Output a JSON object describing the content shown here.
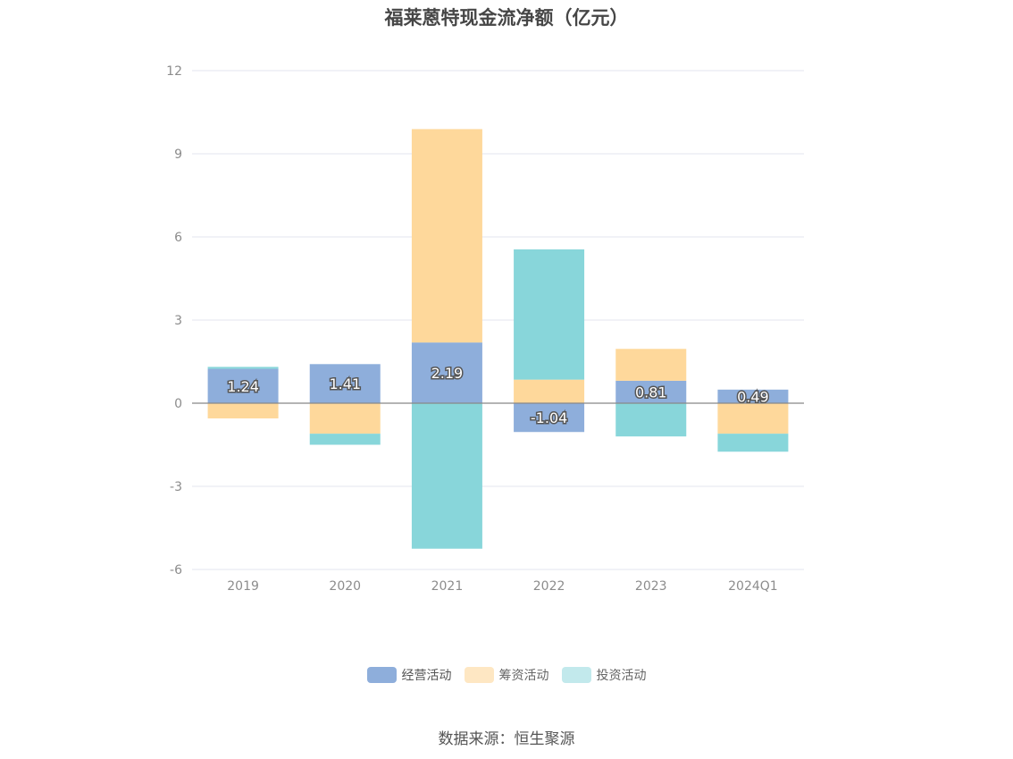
{
  "title": "福莱蒽特现金流净额（亿元）",
  "source": "数据来源：恒生聚源",
  "colors": {
    "operating": "#8eaedb",
    "financing": "#fed89b",
    "investing": "#88d6da",
    "investing_legend": "#c2e9ec",
    "financing_legend": "#fee7c3",
    "zero_line": "#888888",
    "grid": "#e3e6ef",
    "tick_text": "#8c8c8c"
  },
  "chart_data": {
    "type": "bar",
    "stacked": true,
    "categories": [
      "2019",
      "2020",
      "2021",
      "2022",
      "2023",
      "2024Q1"
    ],
    "series": [
      {
        "name": "经营活动",
        "color": "#8eaedb",
        "values": [
          1.24,
          1.41,
          2.19,
          -1.04,
          0.81,
          0.49
        ],
        "labels": [
          "1.24",
          "1.41",
          "2.19",
          "-1.04",
          "0.81",
          "0.49"
        ]
      },
      {
        "name": "筹资活动",
        "color": "#fed89b",
        "values": [
          -0.55,
          -1.1,
          7.7,
          0.85,
          1.15,
          -1.1
        ]
      },
      {
        "name": "投资活动",
        "color": "#88d6da",
        "values": [
          0.07,
          -0.4,
          -5.25,
          4.7,
          -1.2,
          -0.65
        ]
      }
    ],
    "yticks": [
      "12",
      "9",
      "6",
      "3",
      "0",
      "-3",
      "-6"
    ],
    "ylim": [
      -6,
      12
    ],
    "grid": true,
    "legend_position": "bottom"
  }
}
